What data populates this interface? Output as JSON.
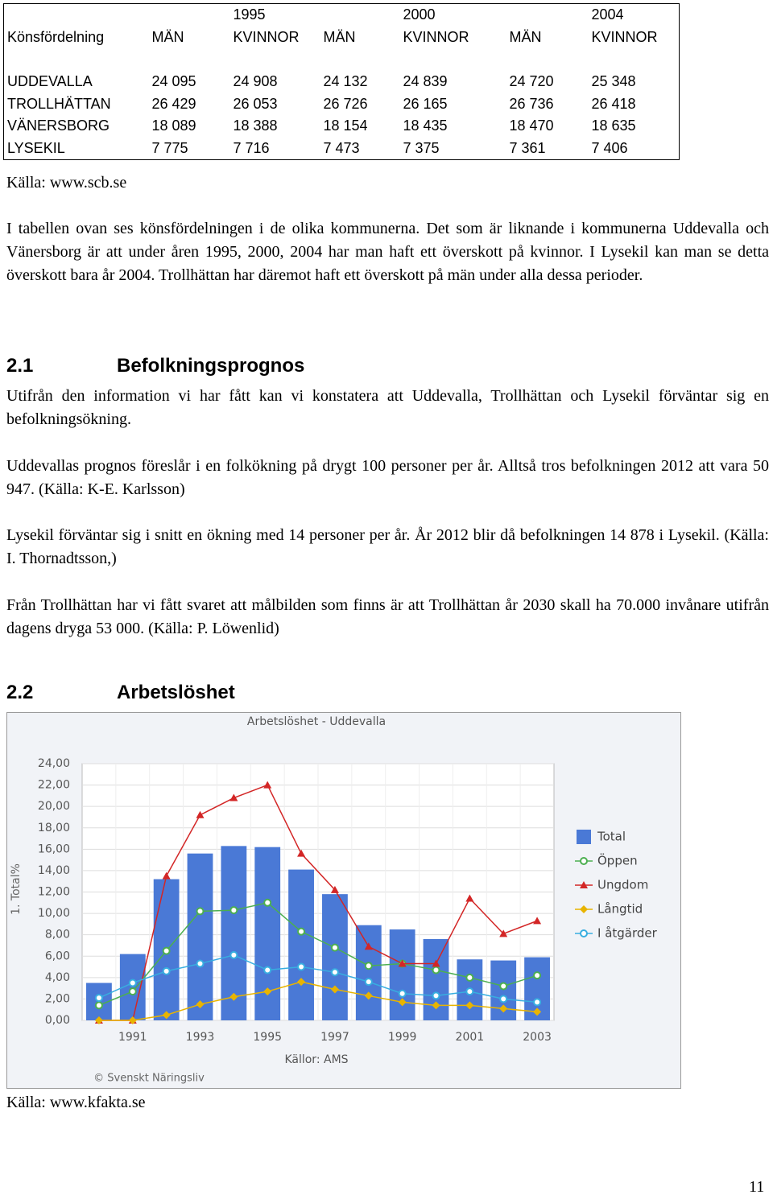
{
  "table": {
    "years": [
      "1995",
      "2000",
      "2004"
    ],
    "header": [
      "Könsfördelning",
      "MÄN",
      "KVINNOR",
      "MÄN",
      "KVINNOR",
      "MÄN",
      "KVINNOR"
    ],
    "rows": [
      [
        "UDDEVALLA",
        "24 095",
        "24 908",
        "24 132",
        "24 839",
        "24 720",
        "25 348"
      ],
      [
        "TROLLHÄTTAN",
        "26 429",
        "26 053",
        "26 726",
        "26 165",
        "26 736",
        "26 418"
      ],
      [
        "VÄNERSBORG",
        "18 089",
        "18 388",
        "18 154",
        "18 435",
        "18 470",
        "18 635"
      ],
      [
        "LYSEKIL",
        "7 775",
        "7 716",
        "7 473",
        "7 375",
        "7 361",
        "7 406"
      ]
    ]
  },
  "table_source": "Källa: www.scb.se",
  "intro": "I tabellen ovan ses könsfördelningen i de olika kommunerna. Det som är liknande i kommunerna Uddevalla och Vänersborg är att under åren 1995, 2000, 2004 har man haft ett överskott på kvinnor. I Lysekil kan man se detta överskott bara år 2004. Trollhättan har däremot haft ett överskott på män under alla dessa perioder.",
  "sections": [
    {
      "number": "2.1",
      "title": "Befolkningsprognos",
      "paragraphs": [
        "Utifrån den information vi har fått kan vi konstatera att Uddevalla, Trollhättan och Lysekil förväntar sig en befolkningsökning.",
        "Uddevallas prognos föreslår i en folkökning på drygt 100 personer per år. Alltså tros befolkningen 2012 att vara 50 947. (Källa: K-E. Karlsson)",
        "Lysekil förväntar sig i snitt en ökning med 14 personer per år. År 2012 blir då befolkningen 14 878 i Lysekil. (Källa: I. Thornadtsson,)",
        "Från Trollhättan har vi fått svaret att målbilden som finns är att Trollhättan år 2030 skall ha 70.000 invånare utifrån dagens dryga 53 000. (Källa: P. Löwenlid)"
      ]
    },
    {
      "number": "2.2",
      "title": "Arbetslöshet",
      "paragraphs": []
    }
  ],
  "chart_data": {
    "type": "bar",
    "title": "Arbetslöshet - Uddevalla",
    "y_label": "1. Total%",
    "x_label": "Källor: AMS",
    "credit": "© Svenskt Näringsliv",
    "categories": [
      null,
      "1991",
      null,
      "1993",
      null,
      "1995",
      null,
      "1997",
      null,
      "1999",
      null,
      "2001",
      null,
      "2003"
    ],
    "ylim": [
      0,
      24
    ],
    "yticks": [
      {
        "value": 0,
        "label": "0,00"
      },
      {
        "value": 2,
        "label": "2,00"
      },
      {
        "value": 4,
        "label": "4,00"
      },
      {
        "value": 6,
        "label": "6,00"
      },
      {
        "value": 8,
        "label": "8,00"
      },
      {
        "value": 10,
        "label": "10,00"
      },
      {
        "value": 12,
        "label": "12,00"
      },
      {
        "value": 14,
        "label": "14,00"
      },
      {
        "value": 16,
        "label": "16,00"
      },
      {
        "value": 18,
        "label": "18,00"
      },
      {
        "value": 20,
        "label": "20,00"
      },
      {
        "value": 22,
        "label": "22,00"
      },
      {
        "value": 24,
        "label": "24,00"
      }
    ],
    "grid": true,
    "legend": "right",
    "series": [
      {
        "name": "Total",
        "type": "bar",
        "color": "#4a79d6",
        "values": [
          3.5,
          6.2,
          13.2,
          15.6,
          16.3,
          16.2,
          14.1,
          11.8,
          8.9,
          8.5,
          7.6,
          5.7,
          5.6,
          5.9
        ]
      },
      {
        "name": "Öppen",
        "type": "line",
        "marker": "circle",
        "color": "#4caf50",
        "values": [
          1.4,
          2.7,
          6.5,
          10.2,
          10.3,
          11.0,
          8.3,
          6.8,
          5.1,
          5.3,
          4.7,
          4.0,
          3.2,
          4.2
        ]
      },
      {
        "name": "Ungdom",
        "type": "line",
        "marker": "triangle",
        "color": "#d32626",
        "values": [
          0,
          0,
          13.5,
          19.2,
          20.8,
          22.0,
          15.6,
          12.2,
          6.9,
          5.3,
          5.3,
          11.4,
          8.1,
          9.3
        ]
      },
      {
        "name": "Långtid",
        "type": "line",
        "marker": "diamond",
        "color": "#e8b400",
        "values": [
          0,
          0,
          0.5,
          1.5,
          2.2,
          2.7,
          3.6,
          2.9,
          2.3,
          1.7,
          1.4,
          1.4,
          1.1,
          0.8
        ]
      },
      {
        "name": "I åtgärder",
        "type": "line",
        "marker": "circle",
        "color": "#38aee0",
        "values": [
          2.1,
          3.5,
          4.6,
          5.3,
          6.1,
          4.7,
          5.0,
          4.5,
          3.6,
          2.5,
          2.3,
          2.7,
          2.0,
          1.7
        ]
      }
    ]
  },
  "chart_source": "Källa: www.kfakta.se",
  "page_number": "11"
}
